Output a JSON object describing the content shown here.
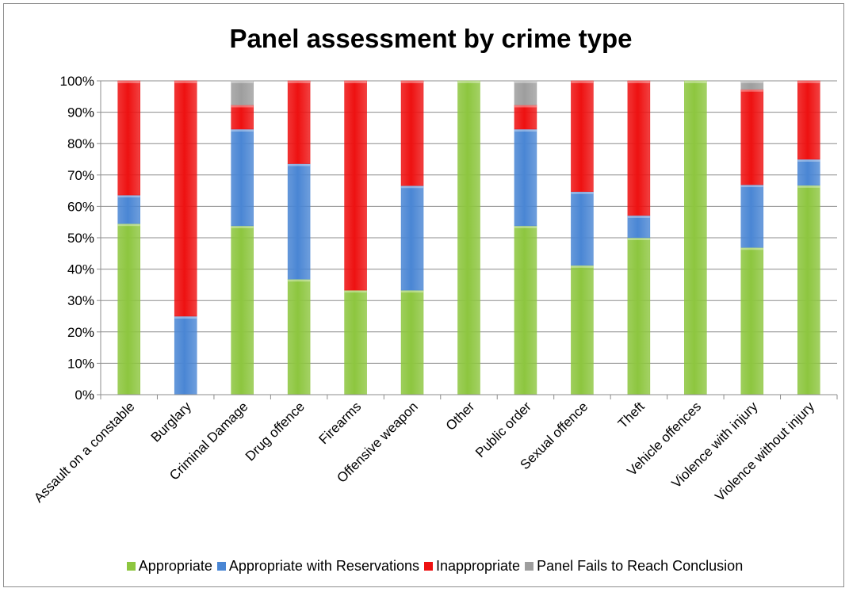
{
  "chart_data": {
    "type": "bar",
    "stacked": true,
    "percent": true,
    "title": "Panel assessment by crime type",
    "xlabel": "",
    "ylabel": "",
    "ylim": [
      0,
      100
    ],
    "y_ticks": [
      "0%",
      "10%",
      "20%",
      "30%",
      "40%",
      "50%",
      "60%",
      "70%",
      "80%",
      "90%",
      "100%"
    ],
    "grid": true,
    "legend_position": "bottom",
    "categories": [
      "Assault on a constable",
      "Burglary",
      "Criminal Damage",
      "Drug offence",
      "Firearms",
      "Offensive weapon",
      "Other",
      "Public order",
      "Sexual offence",
      "Theft",
      "Vehicle offences",
      "Violence with injury",
      "Violence without injury"
    ],
    "series": [
      {
        "name": "Appropriate",
        "color": "#8dc63f",
        "values": [
          54.5,
          0,
          53.8,
          36.8,
          33.3,
          33.3,
          100,
          53.8,
          41.2,
          50,
          100,
          46.9,
          66.7
        ]
      },
      {
        "name": "Appropriate with Reservations",
        "color": "#4a86d4",
        "values": [
          9.1,
          25,
          30.8,
          36.8,
          0,
          33.3,
          0,
          30.8,
          23.5,
          7.1,
          0,
          20,
          8.3
        ]
      },
      {
        "name": "Inappropriate",
        "color": "#ee1111",
        "values": [
          36.4,
          75,
          7.7,
          26.4,
          66.7,
          33.4,
          0,
          7.7,
          35.3,
          42.9,
          0,
          30.4,
          25
        ]
      },
      {
        "name": "Panel Fails to Reach Conclusion",
        "color": "#9e9e9e",
        "values": [
          0,
          0,
          7.7,
          0,
          0,
          0,
          0,
          7.7,
          0,
          0,
          0,
          2.7,
          0
        ]
      }
    ]
  }
}
